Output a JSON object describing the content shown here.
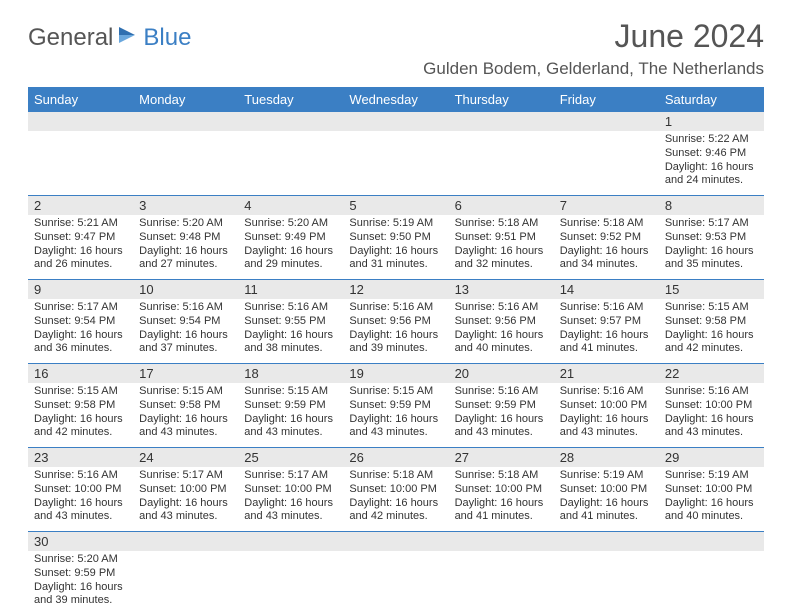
{
  "brand": {
    "part1": "General",
    "part2": "Blue"
  },
  "title": "June 2024",
  "location": "Gulden Bodem, Gelderland, The Netherlands",
  "colors": {
    "header_bar": "#3b7fc4",
    "daynum_bg": "#e9e9e9",
    "text": "#333333",
    "title_text": "#555555",
    "background": "#ffffff"
  },
  "typography": {
    "title_fontsize_pt": 24,
    "location_fontsize_pt": 13,
    "weekday_fontsize_pt": 10,
    "body_fontsize_pt": 8
  },
  "weekdays": [
    "Sunday",
    "Monday",
    "Tuesday",
    "Wednesday",
    "Thursday",
    "Friday",
    "Saturday"
  ],
  "grid": {
    "rows": 6,
    "cols": 7,
    "first_day_col": 6
  },
  "days": [
    {
      "n": 1,
      "sunrise": "5:22 AM",
      "sunset": "9:46 PM",
      "dl_h": 16,
      "dl_m": 24
    },
    {
      "n": 2,
      "sunrise": "5:21 AM",
      "sunset": "9:47 PM",
      "dl_h": 16,
      "dl_m": 26
    },
    {
      "n": 3,
      "sunrise": "5:20 AM",
      "sunset": "9:48 PM",
      "dl_h": 16,
      "dl_m": 27
    },
    {
      "n": 4,
      "sunrise": "5:20 AM",
      "sunset": "9:49 PM",
      "dl_h": 16,
      "dl_m": 29
    },
    {
      "n": 5,
      "sunrise": "5:19 AM",
      "sunset": "9:50 PM",
      "dl_h": 16,
      "dl_m": 31
    },
    {
      "n": 6,
      "sunrise": "5:18 AM",
      "sunset": "9:51 PM",
      "dl_h": 16,
      "dl_m": 32
    },
    {
      "n": 7,
      "sunrise": "5:18 AM",
      "sunset": "9:52 PM",
      "dl_h": 16,
      "dl_m": 34
    },
    {
      "n": 8,
      "sunrise": "5:17 AM",
      "sunset": "9:53 PM",
      "dl_h": 16,
      "dl_m": 35
    },
    {
      "n": 9,
      "sunrise": "5:17 AM",
      "sunset": "9:54 PM",
      "dl_h": 16,
      "dl_m": 36
    },
    {
      "n": 10,
      "sunrise": "5:16 AM",
      "sunset": "9:54 PM",
      "dl_h": 16,
      "dl_m": 37
    },
    {
      "n": 11,
      "sunrise": "5:16 AM",
      "sunset": "9:55 PM",
      "dl_h": 16,
      "dl_m": 38
    },
    {
      "n": 12,
      "sunrise": "5:16 AM",
      "sunset": "9:56 PM",
      "dl_h": 16,
      "dl_m": 39
    },
    {
      "n": 13,
      "sunrise": "5:16 AM",
      "sunset": "9:56 PM",
      "dl_h": 16,
      "dl_m": 40
    },
    {
      "n": 14,
      "sunrise": "5:16 AM",
      "sunset": "9:57 PM",
      "dl_h": 16,
      "dl_m": 41
    },
    {
      "n": 15,
      "sunrise": "5:15 AM",
      "sunset": "9:58 PM",
      "dl_h": 16,
      "dl_m": 42
    },
    {
      "n": 16,
      "sunrise": "5:15 AM",
      "sunset": "9:58 PM",
      "dl_h": 16,
      "dl_m": 42
    },
    {
      "n": 17,
      "sunrise": "5:15 AM",
      "sunset": "9:58 PM",
      "dl_h": 16,
      "dl_m": 43
    },
    {
      "n": 18,
      "sunrise": "5:15 AM",
      "sunset": "9:59 PM",
      "dl_h": 16,
      "dl_m": 43
    },
    {
      "n": 19,
      "sunrise": "5:15 AM",
      "sunset": "9:59 PM",
      "dl_h": 16,
      "dl_m": 43
    },
    {
      "n": 20,
      "sunrise": "5:16 AM",
      "sunset": "9:59 PM",
      "dl_h": 16,
      "dl_m": 43
    },
    {
      "n": 21,
      "sunrise": "5:16 AM",
      "sunset": "10:00 PM",
      "dl_h": 16,
      "dl_m": 43
    },
    {
      "n": 22,
      "sunrise": "5:16 AM",
      "sunset": "10:00 PM",
      "dl_h": 16,
      "dl_m": 43
    },
    {
      "n": 23,
      "sunrise": "5:16 AM",
      "sunset": "10:00 PM",
      "dl_h": 16,
      "dl_m": 43
    },
    {
      "n": 24,
      "sunrise": "5:17 AM",
      "sunset": "10:00 PM",
      "dl_h": 16,
      "dl_m": 43
    },
    {
      "n": 25,
      "sunrise": "5:17 AM",
      "sunset": "10:00 PM",
      "dl_h": 16,
      "dl_m": 43
    },
    {
      "n": 26,
      "sunrise": "5:18 AM",
      "sunset": "10:00 PM",
      "dl_h": 16,
      "dl_m": 42
    },
    {
      "n": 27,
      "sunrise": "5:18 AM",
      "sunset": "10:00 PM",
      "dl_h": 16,
      "dl_m": 41
    },
    {
      "n": 28,
      "sunrise": "5:19 AM",
      "sunset": "10:00 PM",
      "dl_h": 16,
      "dl_m": 41
    },
    {
      "n": 29,
      "sunrise": "5:19 AM",
      "sunset": "10:00 PM",
      "dl_h": 16,
      "dl_m": 40
    },
    {
      "n": 30,
      "sunrise": "5:20 AM",
      "sunset": "9:59 PM",
      "dl_h": 16,
      "dl_m": 39
    }
  ],
  "labels": {
    "sunrise": "Sunrise:",
    "sunset": "Sunset:",
    "daylight_prefix": "Daylight:",
    "hours_word": "hours",
    "and_word": "and",
    "minutes_word": "minutes."
  }
}
